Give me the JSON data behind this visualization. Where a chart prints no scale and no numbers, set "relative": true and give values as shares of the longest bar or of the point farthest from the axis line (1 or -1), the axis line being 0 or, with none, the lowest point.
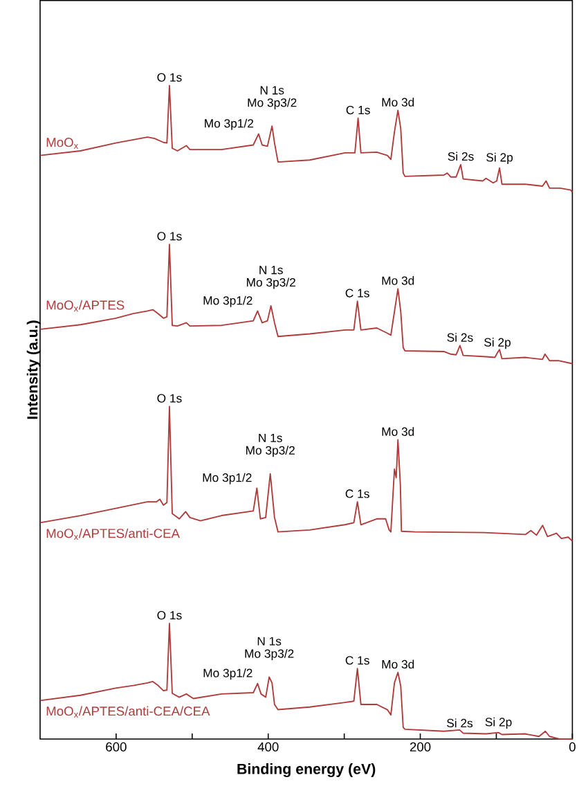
{
  "chart_data": {
    "type": "line",
    "relative": true,
    "xlabel": "Binding energy (eV)",
    "ylabel": "Intensity (a.u.)",
    "xlim": [
      700,
      0
    ],
    "xticks": [
      600,
      {
        "value": 500,
        "label": null
      },
      400,
      {
        "value": 300,
        "label": null
      },
      200,
      {
        "value": 100,
        "label": null
      },
      0
    ],
    "legend": false,
    "grid": false,
    "series": [
      {
        "name": "MoO$_{x}$",
        "color": "#b03a3a",
        "x": [
          700,
          646.8,
          600.4,
          558.7,
          549.4,
          537.8,
          533.2,
          529.9,
          526.2,
          519.3,
          507.7,
          503.0,
          461.3,
          419.6,
          412.6,
          408.0,
          401.0,
          395.0,
          391.7,
          387.1,
          345.4,
          299.0,
          286.0,
          281.8,
          278.1,
          257.2,
          243.3,
          238.7,
          234.0,
          229.4,
          225.7,
          222.5,
          220.1,
          169.1,
          164.5,
          159.8,
          152.9,
          146.8,
          143.6,
          118.1,
          113.5,
          104.2,
          99.5,
          95.8,
          92.6,
          62.4,
          39.3,
          34.6,
          30.0,
          16.1,
          2.2,
          0
        ],
        "values": [
          0.893,
          0.9,
          0.912,
          0.921,
          0.919,
          0.913,
          0.912,
          1,
          0.904,
          0.9,
          0.908,
          0.902,
          0.902,
          0.909,
          0.926,
          0.909,
          0.907,
          0.938,
          0.912,
          0.883,
          0.886,
          0.897,
          0.897,
          0.95,
          0.897,
          0.898,
          0.893,
          0.887,
          0.929,
          0.962,
          0.934,
          0.866,
          0.861,
          0.863,
          0.866,
          0.86,
          0.86,
          0.879,
          0.857,
          0.854,
          0.858,
          0.851,
          0.854,
          0.874,
          0.849,
          0.849,
          0.846,
          0.854,
          0.843,
          0.843,
          0.84,
          0.837
        ]
      },
      {
        "name": "MoO$_{x}$/APTES",
        "color": "#b03a3a",
        "x": [
          700,
          646.8,
          600.4,
          577.3,
          558.7,
          551.8,
          544.8,
          537.8,
          533.2,
          529.9,
          526.2,
          519.3,
          507.7,
          503.0,
          461.3,
          419.6,
          414.0,
          408.0,
          401.0,
          396.4,
          391.7,
          387.1,
          345.4,
          299.0,
          287.4,
          282.7,
          278.1,
          257.2,
          243.3,
          238.7,
          234.0,
          229.4,
          225.7,
          222.5,
          220.1,
          169.1,
          159.8,
          152.9,
          147.8,
          143.6,
          113.5,
          101.9,
          98.6,
          95.8,
          92.6,
          62.4,
          39.3,
          36.0,
          30.0,
          18.4,
          2.2,
          0
        ],
        "values": [
          0.627,
          0.634,
          0.644,
          0.651,
          0.655,
          0.657,
          0.651,
          0.644,
          0.646,
          0.757,
          0.633,
          0.632,
          0.637,
          0.632,
          0.633,
          0.64,
          0.655,
          0.637,
          0.64,
          0.663,
          0.637,
          0.616,
          0.62,
          0.626,
          0.626,
          0.67,
          0.626,
          0.629,
          0.621,
          0.618,
          0.654,
          0.689,
          0.654,
          0.599,
          0.594,
          0.593,
          0.589,
          0.588,
          0.602,
          0.587,
          0.585,
          0.584,
          0.591,
          0.596,
          0.582,
          0.584,
          0.581,
          0.589,
          0.579,
          0.579,
          0.575,
          0.574
        ]
      },
      {
        "name": "MoO$_{x}$/APTES/anti-CEA",
        "color": "#b03a3a",
        "x": [
          700,
          646.8,
          600.4,
          558.7,
          547.1,
          542.5,
          537.8,
          533.2,
          529.9,
          526.2,
          517.0,
          508.6,
          503.0,
          489.1,
          461.3,
          419.6,
          414.9,
          410.3,
          403.3,
          397.3,
          391.7,
          387.1,
          345.4,
          299.0,
          287.4,
          282.7,
          278.1,
          257.2,
          245.6,
          241.0,
          238.7,
          234.0,
          231.7,
          229.4,
          226.2,
          224.8,
          207.3,
          116.4,
          61.8,
          54.5,
          47.3,
          39.1,
          32.7,
          20.9,
          14.5,
          5.5,
          0
        ],
        "values": [
          0.331,
          0.342,
          0.353,
          0.363,
          0.363,
          0.367,
          0.358,
          0.362,
          0.509,
          0.345,
          0.337,
          0.348,
          0.339,
          0.334,
          0.342,
          0.349,
          0.384,
          0.337,
          0.339,
          0.406,
          0.339,
          0.317,
          0.32,
          0.328,
          0.331,
          0.363,
          0.328,
          0.337,
          0.337,
          0.32,
          0.317,
          0.413,
          0.4,
          0.458,
          0.389,
          0.318,
          0.317,
          0.316,
          0.313,
          0.319,
          0.312,
          0.327,
          0.31,
          0.315,
          0.307,
          0.309,
          0.303
        ]
      },
      {
        "name": "MoO$_{x}$/APTES/anti-CEA/CEA",
        "color": "#b03a3a",
        "x": [
          700,
          646.8,
          600.4,
          577.3,
          558.7,
          551.8,
          544.8,
          537.8,
          533.2,
          529.9,
          526.2,
          517.0,
          507.7,
          498.4,
          461.3,
          419.6,
          414.0,
          409.4,
          403.3,
          398.7,
          395.0,
          391.7,
          387.1,
          345.4,
          299.0,
          287.4,
          282.7,
          278.1,
          257.2,
          243.3,
          238.7,
          234.0,
          229.4,
          225.7,
          222.5,
          220.1,
          169.1,
          148.2,
          143.6,
          113.5,
          97.2,
          92.6,
          62.4,
          43.9,
          35.5,
          30.0,
          16.1,
          0
        ],
        "values": [
          0.059,
          0.067,
          0.078,
          0.082,
          0.086,
          0.088,
          0.082,
          0.074,
          0.075,
          0.177,
          0.07,
          0.064,
          0.069,
          0.062,
          0.069,
          0.071,
          0.085,
          0.069,
          0.064,
          0.095,
          0.086,
          0.053,
          0.045,
          0.049,
          0.056,
          0.058,
          0.108,
          0.053,
          0.053,
          0.045,
          0.037,
          0.086,
          0.102,
          0.081,
          0.018,
          0.015,
          0.012,
          0.014,
          0.009,
          0.008,
          0.01,
          0.007,
          0.008,
          0.004,
          0.012,
          0.004,
          0,
          0
        ]
      }
    ],
    "annotations": [
      {
        "text": "O 1s",
        "x": 529.9,
        "y": 1
      },
      {
        "text": "Mo 3p1/2",
        "x": 412.6,
        "y": 0.926
      },
      {
        "text": "Mo 3p3/2",
        "x": 395.0,
        "y": 0.938
      },
      {
        "text": "N 1s",
        "x": 395.0,
        "y": 0.938
      },
      {
        "text": "C 1s",
        "x": 281.8,
        "y": 0.95
      },
      {
        "text": "Mo 3d",
        "x": 229.4,
        "y": 0.962
      },
      {
        "text": "Si 2s",
        "x": 146.8,
        "y": 0.879
      },
      {
        "text": "Si 2p",
        "x": 95.8,
        "y": 0.874
      },
      {
        "text": "O 1s",
        "x": 529.9,
        "y": 0.757
      },
      {
        "text": "Mo 3p1/2",
        "x": 414.0,
        "y": 0.655
      },
      {
        "text": "Mo 3p3/2",
        "x": 396.4,
        "y": 0.663
      },
      {
        "text": "N 1s",
        "x": 396.4,
        "y": 0.663
      },
      {
        "text": "C 1s",
        "x": 282.7,
        "y": 0.67
      },
      {
        "text": "Mo 3d",
        "x": 229.4,
        "y": 0.689
      },
      {
        "text": "Si 2s",
        "x": 147.8,
        "y": 0.602
      },
      {
        "text": "Si 2p",
        "x": 98.6,
        "y": 0.591
      },
      {
        "text": "O 1s",
        "x": 529.9,
        "y": 0.509
      },
      {
        "text": "Mo 3p1/2",
        "x": 414.9,
        "y": 0.384
      },
      {
        "text": "Mo 3p3/2",
        "x": 397.3,
        "y": 0.406
      },
      {
        "text": "N 1s",
        "x": 397.3,
        "y": 0.406
      },
      {
        "text": "C 1s",
        "x": 282.7,
        "y": 0.363
      },
      {
        "text": "Mo 3d",
        "x": 229.4,
        "y": 0.458
      },
      {
        "text": "O 1s",
        "x": 529.9,
        "y": 0.177
      },
      {
        "text": "Mo 3p1/2",
        "x": 414.0,
        "y": 0.085
      },
      {
        "text": "Mo 3p3/2",
        "x": 398.7,
        "y": 0.095
      },
      {
        "text": "N 1s",
        "x": 398.7,
        "y": 0.095
      },
      {
        "text": "C 1s",
        "x": 282.7,
        "y": 0.108
      },
      {
        "text": "Mo 3d",
        "x": 229.4,
        "y": 0.102
      },
      {
        "text": "Si 2s",
        "x": 148.2,
        "y": 0.012
      },
      {
        "text": "Si 2p",
        "x": 97.2,
        "y": 0.01
      }
    ]
  }
}
